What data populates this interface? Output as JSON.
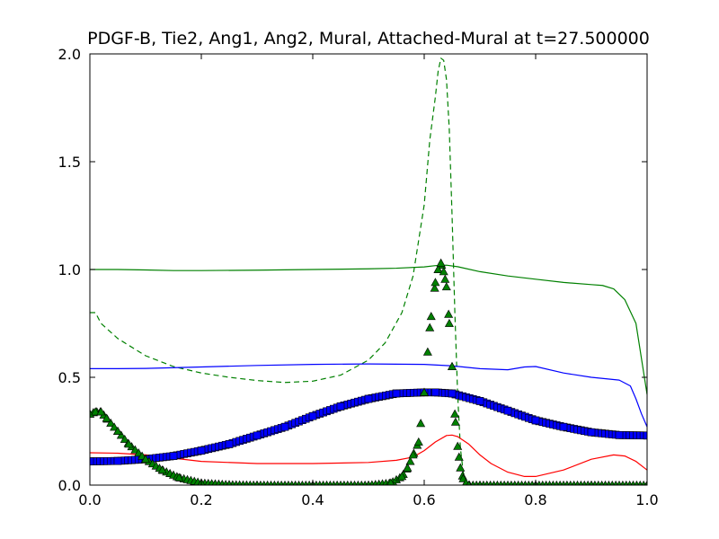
{
  "chart_data": {
    "type": "line",
    "title": "PDGF-B, Tie2, Ang1, Ang2, Mural, Attached-Mural at t=27.500000",
    "xlabel": "",
    "ylabel": "",
    "xlim": [
      0.0,
      1.0
    ],
    "ylim": [
      0.0,
      2.0
    ],
    "xticks": [
      "0.0",
      "0.2",
      "0.4",
      "0.6",
      "0.8",
      "1.0"
    ],
    "yticks": [
      "0.0",
      "0.5",
      "1.0",
      "1.5",
      "2.0"
    ],
    "grid": false,
    "legend": "none",
    "series": [
      {
        "color": "#008000",
        "style": "solid",
        "x": [
          0.0,
          0.05,
          0.1,
          0.15,
          0.2,
          0.3,
          0.4,
          0.5,
          0.55,
          0.6,
          0.62,
          0.64,
          0.66,
          0.7,
          0.75,
          0.8,
          0.85,
          0.9,
          0.92,
          0.94,
          0.96,
          0.98,
          1.0
        ],
        "y": [
          1.0,
          1.0,
          0.998,
          0.995,
          0.995,
          0.997,
          1.0,
          1.003,
          1.006,
          1.012,
          1.018,
          1.02,
          1.013,
          0.99,
          0.97,
          0.955,
          0.94,
          0.93,
          0.926,
          0.91,
          0.86,
          0.75,
          0.42
        ]
      },
      {
        "color": "#008000",
        "style": "dashed",
        "x": [
          0.0,
          0.01,
          0.02,
          0.05,
          0.1,
          0.15,
          0.2,
          0.25,
          0.3,
          0.35,
          0.4,
          0.45,
          0.5,
          0.53,
          0.56,
          0.58,
          0.6,
          0.61,
          0.62,
          0.625,
          0.63,
          0.635,
          0.64,
          0.645,
          0.65,
          0.655,
          0.66,
          0.665,
          0.67,
          0.675,
          0.68,
          0.7,
          0.8,
          0.9,
          1.0
        ],
        "y": [
          0.8,
          0.8,
          0.75,
          0.68,
          0.6,
          0.55,
          0.52,
          0.5,
          0.485,
          0.476,
          0.482,
          0.51,
          0.58,
          0.66,
          0.8,
          0.97,
          1.3,
          1.6,
          1.8,
          1.92,
          1.98,
          1.97,
          1.88,
          1.65,
          1.25,
          0.8,
          0.42,
          0.17,
          0.06,
          0.02,
          0.0,
          0.0,
          0.0,
          0.0,
          0.0
        ]
      },
      {
        "color": "#0000ff",
        "style": "solid",
        "x": [
          0.0,
          0.05,
          0.1,
          0.2,
          0.3,
          0.4,
          0.5,
          0.6,
          0.65,
          0.7,
          0.75,
          0.78,
          0.8,
          0.85,
          0.9,
          0.95,
          0.97,
          0.98,
          0.99,
          1.0
        ],
        "y": [
          0.54,
          0.54,
          0.541,
          0.548,
          0.555,
          0.56,
          0.562,
          0.56,
          0.553,
          0.54,
          0.535,
          0.548,
          0.55,
          0.52,
          0.5,
          0.487,
          0.46,
          0.4,
          0.33,
          0.27
        ]
      },
      {
        "color": "#ff0000",
        "style": "solid",
        "x": [
          0.0,
          0.05,
          0.1,
          0.15,
          0.2,
          0.3,
          0.4,
          0.5,
          0.55,
          0.58,
          0.6,
          0.62,
          0.64,
          0.65,
          0.66,
          0.68,
          0.7,
          0.72,
          0.75,
          0.78,
          0.8,
          0.85,
          0.9,
          0.94,
          0.96,
          0.98,
          1.0
        ],
        "y": [
          0.15,
          0.148,
          0.14,
          0.125,
          0.11,
          0.1,
          0.1,
          0.105,
          0.115,
          0.13,
          0.16,
          0.2,
          0.23,
          0.232,
          0.225,
          0.19,
          0.14,
          0.1,
          0.06,
          0.04,
          0.04,
          0.07,
          0.12,
          0.14,
          0.135,
          0.11,
          0.07
        ]
      },
      {
        "color": "#0000ff",
        "style": "markers",
        "marker": "square",
        "x": [
          0.0,
          0.05,
          0.1,
          0.15,
          0.2,
          0.25,
          0.3,
          0.35,
          0.4,
          0.45,
          0.5,
          0.55,
          0.6,
          0.62,
          0.65,
          0.7,
          0.75,
          0.8,
          0.85,
          0.9,
          0.95,
          1.0
        ],
        "y": [
          0.11,
          0.112,
          0.12,
          0.135,
          0.16,
          0.19,
          0.23,
          0.27,
          0.32,
          0.365,
          0.4,
          0.425,
          0.43,
          0.43,
          0.425,
          0.39,
          0.345,
          0.3,
          0.27,
          0.245,
          0.232,
          0.23
        ]
      },
      {
        "color": "#008000",
        "style": "markers",
        "marker": "triangle",
        "x": [
          0.0,
          0.01,
          0.02,
          0.03,
          0.05,
          0.07,
          0.1,
          0.13,
          0.16,
          0.2,
          0.25,
          0.3,
          0.4,
          0.5,
          0.54,
          0.56,
          0.57,
          0.58,
          0.59,
          0.6,
          0.61,
          0.62,
          0.625,
          0.63,
          0.635,
          0.64,
          0.645,
          0.65,
          0.655,
          0.66,
          0.665,
          0.67,
          0.675,
          0.68,
          0.7,
          0.8,
          0.9,
          1.0
        ],
        "y": [
          0.33,
          0.34,
          0.34,
          0.31,
          0.25,
          0.19,
          0.12,
          0.07,
          0.035,
          0.01,
          0.002,
          0.0,
          0.0,
          0.0,
          0.01,
          0.04,
          0.08,
          0.14,
          0.2,
          0.43,
          0.73,
          0.94,
          1.0,
          1.03,
          0.99,
          0.92,
          0.75,
          0.55,
          0.33,
          0.18,
          0.08,
          0.03,
          0.01,
          0.0,
          0.0,
          0.0,
          0.0,
          0.0
        ]
      }
    ]
  }
}
